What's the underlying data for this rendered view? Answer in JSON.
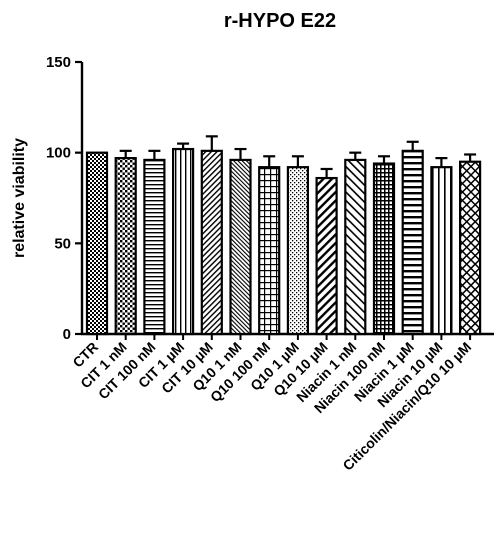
{
  "chart_data": {
    "type": "bar",
    "title": "r-HYPO E22",
    "xlabel": "",
    "ylabel": "relative viability",
    "ylim": [
      0,
      150
    ],
    "yticks": [
      0,
      50,
      100,
      150
    ],
    "grid": false,
    "legend": "none",
    "categories": [
      "CTR",
      "CIT 1 nM",
      "CIT 100 nM",
      "CIT 1 µM",
      "CIT 10 µM",
      "Q10 1 nM",
      "Q10 100 nM",
      "Q10 1 µM",
      "Q10 10 µM",
      "Niacin 1 nM",
      "Niacin 100 nM",
      "Niacin 1 µM",
      "Niacin 10 µM",
      "Citicolin/Niacin/Q10 10 µM"
    ],
    "values": [
      100,
      97,
      96,
      102,
      101,
      96,
      92,
      92,
      86,
      96,
      94,
      101,
      92,
      95
    ],
    "errors": [
      0,
      4,
      5,
      3,
      8,
      6,
      6,
      6,
      5,
      4,
      4,
      5,
      5,
      4
    ],
    "patterns": [
      "checker",
      "dots",
      "hlines",
      "vlines",
      "diag-left",
      "diag-right-dense",
      "grid",
      "dots-light",
      "diag-left-bold",
      "diag-right",
      "crosshatch-dense",
      "hlines-bold",
      "vlines-spaced",
      "crosshatch-diag"
    ],
    "colors": {
      "ink": "#000000",
      "fill": "#ffffff"
    }
  }
}
